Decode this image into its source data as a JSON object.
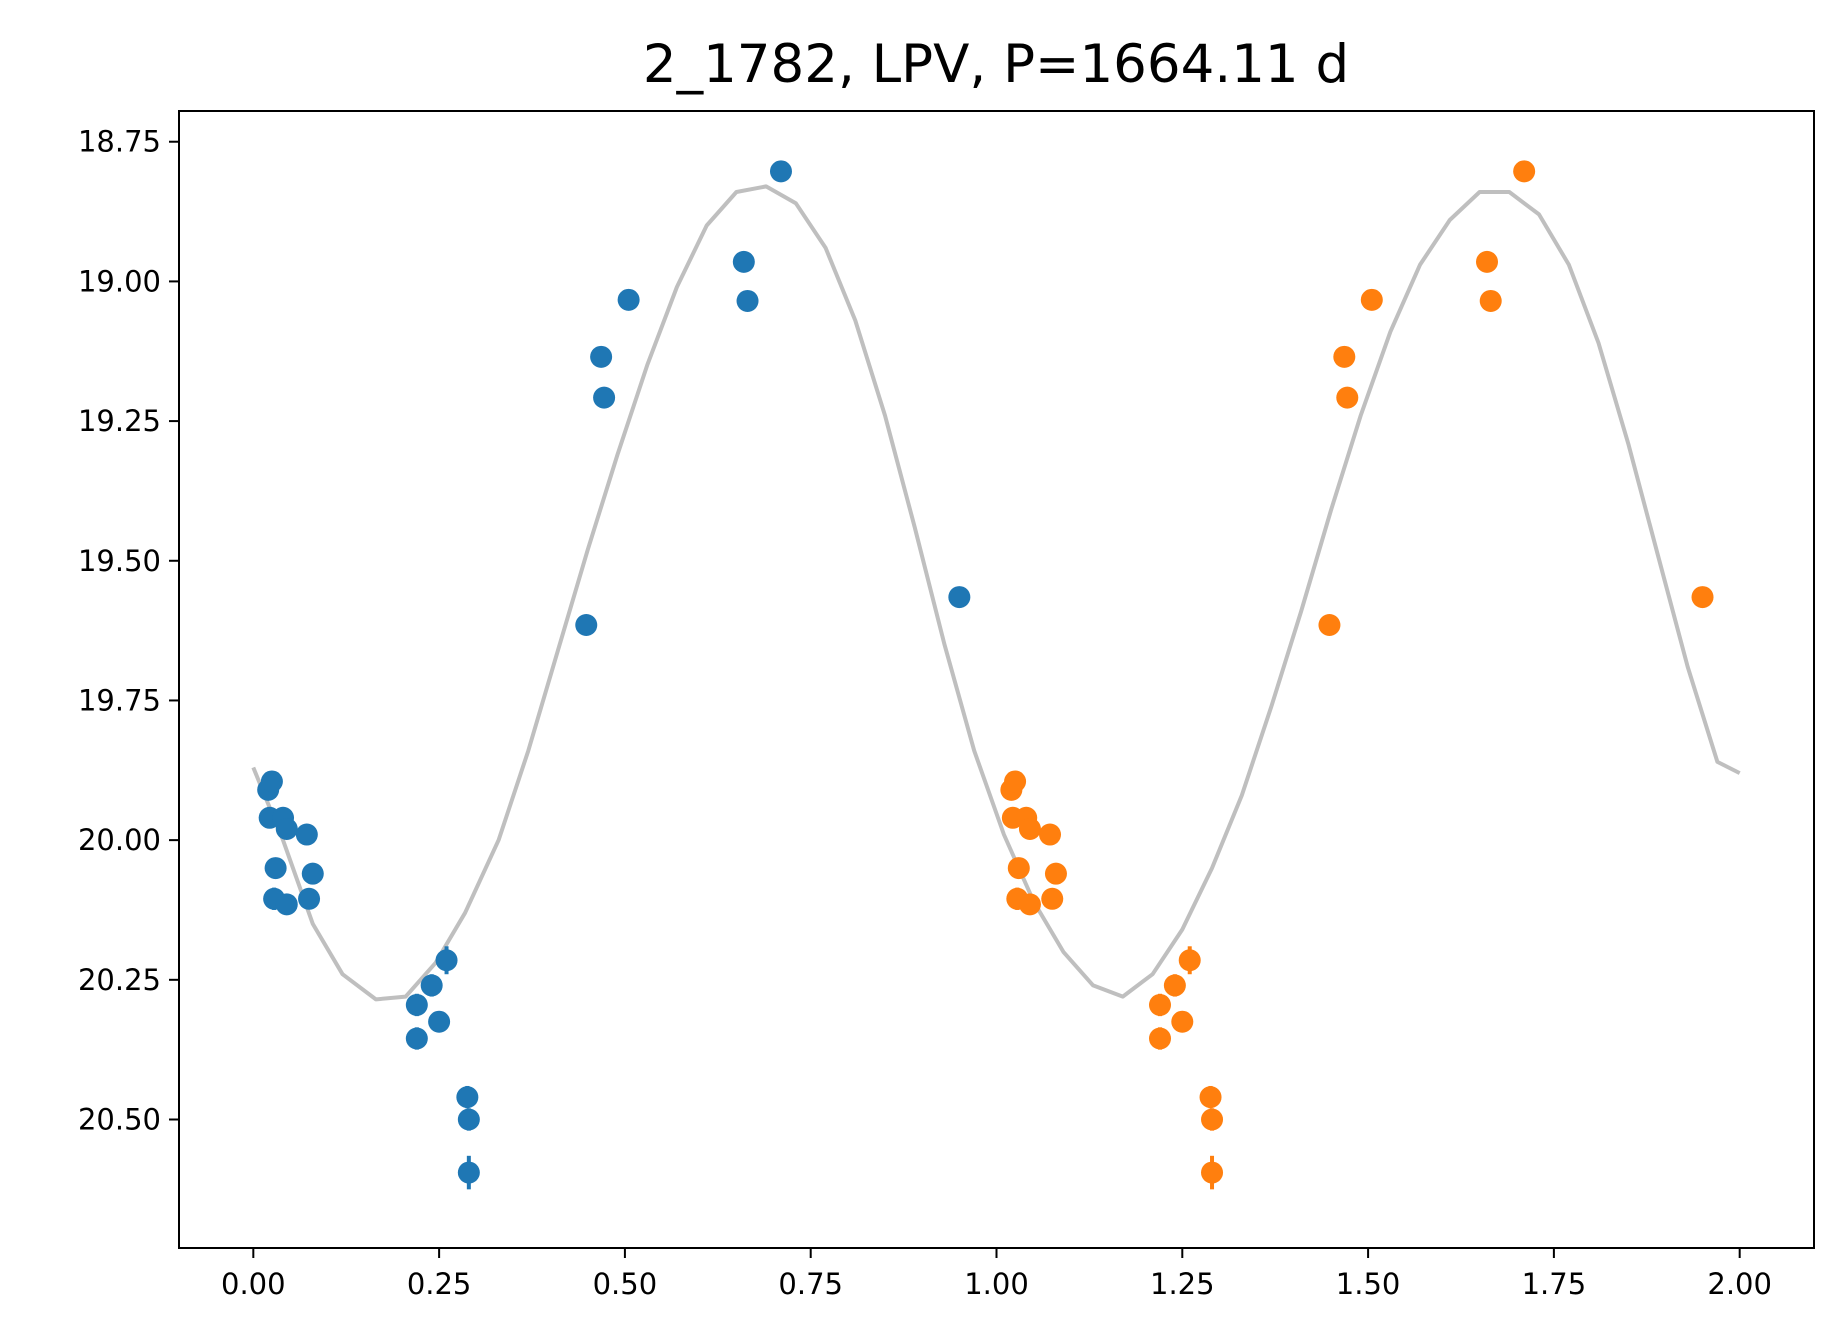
{
  "chart_data": {
    "type": "scatter",
    "title": "2_1782, LPV, P=1664.11 d",
    "xlabel": "",
    "ylabel": "",
    "xlim": [
      -0.1,
      2.1
    ],
    "ylim": [
      20.73,
      18.695
    ],
    "y_inverted": true,
    "grid": false,
    "legend": "none",
    "x_ticks": [
      "0.00",
      "0.25",
      "0.50",
      "0.75",
      "1.00",
      "1.25",
      "1.50",
      "1.75",
      "2.00"
    ],
    "y_ticks": [
      "18.75",
      "19.00",
      "19.25",
      "19.50",
      "19.75",
      "20.00",
      "20.25",
      "20.50"
    ],
    "x_tick_values": [
      0,
      0.25,
      0.5,
      0.75,
      1.0,
      1.25,
      1.5,
      1.75,
      2.0
    ],
    "y_tick_values": [
      18.75,
      19.0,
      19.25,
      19.5,
      19.75,
      20.0,
      20.25,
      20.5
    ],
    "series": [
      {
        "color": "#1f77b4",
        "x": [
          0.02,
          0.025,
          0.022,
          0.04,
          0.045,
          0.072,
          0.03,
          0.08,
          0.028,
          0.045,
          0.075,
          0.22,
          0.24,
          0.26,
          0.25,
          0.22,
          0.288,
          0.29,
          0.29,
          0.448,
          0.468,
          0.472,
          0.505,
          0.66,
          0.665,
          0.71,
          0.95
        ],
        "y": [
          19.91,
          19.895,
          19.96,
          19.96,
          19.98,
          19.99,
          20.05,
          20.06,
          20.105,
          20.115,
          20.105,
          20.295,
          20.26,
          20.215,
          20.325,
          20.355,
          20.46,
          20.5,
          20.595,
          19.615,
          19.135,
          19.208,
          19.033,
          18.965,
          19.035,
          18.803,
          19.565
        ],
        "yerr": [
          0.01,
          0.01,
          0.01,
          0.015,
          0.015,
          0.01,
          0.01,
          0.01,
          0.02,
          0.01,
          0.01,
          0.02,
          0.02,
          0.025,
          0.015,
          0.02,
          0.02,
          0.02,
          0.03,
          0.005,
          0.005,
          0.005,
          0.005,
          0.005,
          0.005,
          0.005,
          0.005
        ]
      },
      {
        "color": "#ff7f0e",
        "x": [
          1.02,
          1.025,
          1.022,
          1.04,
          1.045,
          1.072,
          1.03,
          1.08,
          1.028,
          1.045,
          1.075,
          1.22,
          1.24,
          1.26,
          1.25,
          1.22,
          1.288,
          1.29,
          1.29,
          1.448,
          1.468,
          1.472,
          1.505,
          1.66,
          1.665,
          1.71,
          1.95
        ],
        "y": [
          19.91,
          19.895,
          19.96,
          19.96,
          19.98,
          19.99,
          20.05,
          20.06,
          20.105,
          20.115,
          20.105,
          20.295,
          20.26,
          20.215,
          20.325,
          20.355,
          20.46,
          20.5,
          20.595,
          19.615,
          19.135,
          19.208,
          19.033,
          18.965,
          19.035,
          18.803,
          19.565
        ],
        "yerr": [
          0.01,
          0.01,
          0.01,
          0.015,
          0.015,
          0.01,
          0.01,
          0.01,
          0.02,
          0.01,
          0.01,
          0.02,
          0.02,
          0.025,
          0.015,
          0.02,
          0.02,
          0.02,
          0.03,
          0.005,
          0.005,
          0.005,
          0.005,
          0.005,
          0.005,
          0.005,
          0.005
        ]
      }
    ],
    "model_curve": {
      "color": "#bfbfbf",
      "x": [
        0.0,
        0.04,
        0.08,
        0.12,
        0.165,
        0.205,
        0.245,
        0.285,
        0.33,
        0.37,
        0.41,
        0.45,
        0.49,
        0.53,
        0.57,
        0.61,
        0.65,
        0.69,
        0.73,
        0.77,
        0.81,
        0.85,
        0.89,
        0.93,
        0.97,
        1.01,
        1.05,
        1.09,
        1.13,
        1.17,
        1.21,
        1.25,
        1.29,
        1.33,
        1.37,
        1.41,
        1.45,
        1.49,
        1.53,
        1.57,
        1.61,
        1.65,
        1.69,
        1.73,
        1.77,
        1.81,
        1.85,
        1.89,
        1.93,
        1.97,
        2.0
      ],
      "y": [
        19.87,
        20.0,
        20.15,
        20.24,
        20.285,
        20.28,
        20.22,
        20.13,
        20.0,
        19.84,
        19.66,
        19.48,
        19.31,
        19.15,
        19.01,
        18.9,
        18.84,
        18.83,
        18.86,
        18.94,
        19.07,
        19.24,
        19.44,
        19.65,
        19.84,
        19.99,
        20.11,
        20.2,
        20.26,
        20.28,
        20.24,
        20.16,
        20.05,
        19.92,
        19.76,
        19.59,
        19.41,
        19.24,
        19.09,
        18.97,
        18.89,
        18.84,
        18.84,
        18.88,
        18.97,
        19.11,
        19.29,
        19.49,
        19.69,
        19.86,
        19.88
      ]
    }
  }
}
